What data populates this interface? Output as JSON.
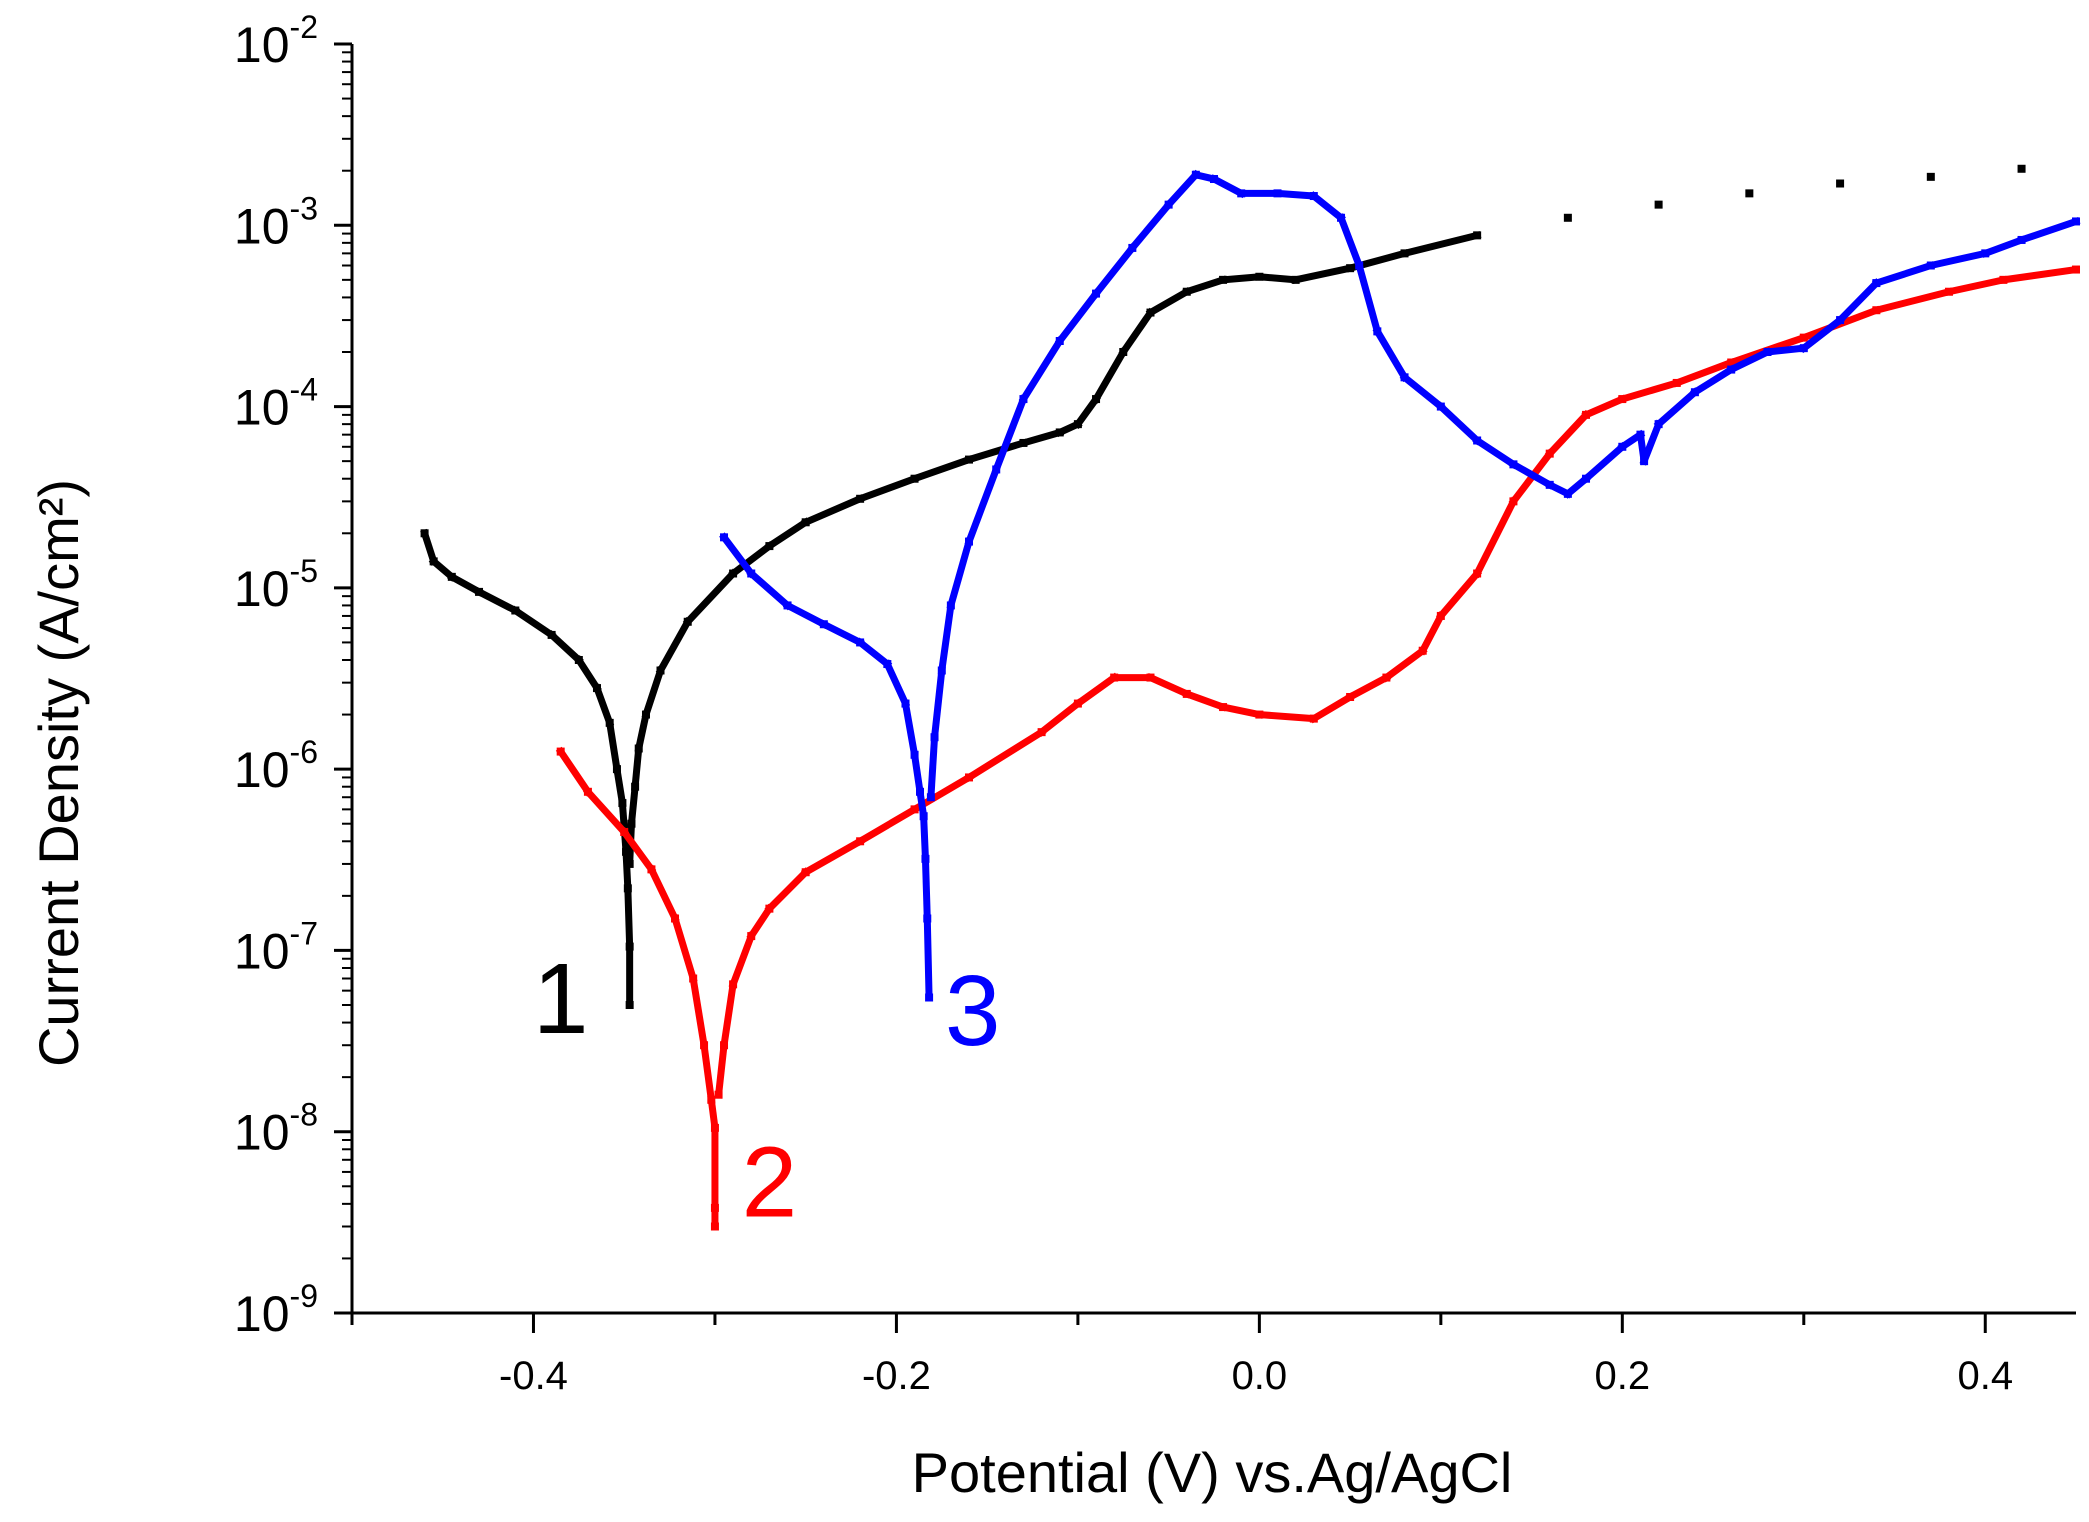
{
  "chart_data": {
    "type": "scatter",
    "x_scale": "linear",
    "y_scale": "log",
    "xlabel": "Potential (V) vs.Ag/AgCl",
    "ylabel": "Current Density (A/cm²)",
    "xlim": [
      -0.5,
      0.45
    ],
    "ylim": [
      1e-09,
      0.01
    ],
    "x_ticks": [
      {
        "value": -0.4,
        "label": "-0.4"
      },
      {
        "value": -0.2,
        "label": "-0.2"
      },
      {
        "value": 0.0,
        "label": "0.0"
      },
      {
        "value": 0.2,
        "label": "0.2"
      },
      {
        "value": 0.4,
        "label": "0.4"
      }
    ],
    "y_ticks": [
      {
        "value": 0.01,
        "base": "10",
        "exp": "-2"
      },
      {
        "value": 0.001,
        "base": "10",
        "exp": "-3"
      },
      {
        "value": 0.0001,
        "base": "10",
        "exp": "-4"
      },
      {
        "value": 1e-05,
        "base": "10",
        "exp": "-5"
      },
      {
        "value": 1e-06,
        "base": "10",
        "exp": "-6"
      },
      {
        "value": 1e-07,
        "base": "10",
        "exp": "-7"
      },
      {
        "value": 1e-08,
        "base": "10",
        "exp": "-8"
      },
      {
        "value": 1e-09,
        "base": "10",
        "exp": "-9"
      }
    ],
    "grid": false,
    "legend": "none",
    "series": [
      {
        "label": "1",
        "color": "#000000",
        "label_pos": [
          -0.385,
          3.5e-08
        ],
        "points": [
          [
            -0.46,
            2e-05
          ],
          [
            -0.455,
            1.4e-05
          ],
          [
            -0.445,
            1.15e-05
          ],
          [
            -0.43,
            9.5e-06
          ],
          [
            -0.41,
            7.5e-06
          ],
          [
            -0.39,
            5.5e-06
          ],
          [
            -0.375,
            4e-06
          ],
          [
            -0.365,
            2.8e-06
          ],
          [
            -0.358,
            1.8e-06
          ],
          [
            -0.354,
            1e-06
          ],
          [
            -0.351,
            6.5e-07
          ],
          [
            -0.349,
            3.5e-07
          ],
          [
            -0.348,
            2.2e-07
          ],
          [
            -0.347,
            1.05e-07
          ],
          [
            -0.347,
            5e-08
          ],
          [
            -0.347,
            3e-07
          ],
          [
            -0.346,
            5e-07
          ],
          [
            -0.344,
            8e-07
          ],
          [
            -0.342,
            1.3e-06
          ],
          [
            -0.338,
            2e-06
          ],
          [
            -0.33,
            3.5e-06
          ],
          [
            -0.315,
            6.5e-06
          ],
          [
            -0.29,
            1.2e-05
          ],
          [
            -0.27,
            1.7e-05
          ],
          [
            -0.25,
            2.3e-05
          ],
          [
            -0.22,
            3.1e-05
          ],
          [
            -0.19,
            4e-05
          ],
          [
            -0.16,
            5.1e-05
          ],
          [
            -0.13,
            6.3e-05
          ],
          [
            -0.11,
            7.2e-05
          ],
          [
            -0.1,
            8e-05
          ],
          [
            -0.09,
            0.00011
          ],
          [
            -0.075,
            0.0002
          ],
          [
            -0.06,
            0.00033
          ],
          [
            -0.04,
            0.00043
          ],
          [
            -0.02,
            0.0005
          ],
          [
            0.0,
            0.00052
          ],
          [
            0.02,
            0.0005
          ],
          [
            0.05,
            0.00058
          ],
          [
            0.08,
            0.0007
          ],
          [
            0.12,
            0.00088
          ],
          [
            0.17,
            0.0011
          ],
          [
            0.22,
            0.0013
          ],
          [
            0.27,
            0.0015
          ],
          [
            0.32,
            0.0017
          ],
          [
            0.37,
            0.00185
          ],
          [
            0.42,
            0.00205
          ]
        ]
      },
      {
        "label": "2",
        "color": "#ff0000",
        "label_pos": [
          -0.27,
          3.4e-09
        ],
        "points": [
          [
            -0.385,
            1.25e-06
          ],
          [
            -0.37,
            7.5e-07
          ],
          [
            -0.35,
            4.5e-07
          ],
          [
            -0.335,
            2.8e-07
          ],
          [
            -0.322,
            1.5e-07
          ],
          [
            -0.312,
            7e-08
          ],
          [
            -0.306,
            3e-08
          ],
          [
            -0.302,
            1.5e-08
          ],
          [
            -0.3,
            1.05e-08
          ],
          [
            -0.3,
            3.8e-09
          ],
          [
            -0.3,
            3e-09
          ],
          [
            -0.298,
            1.6e-08
          ],
          [
            -0.295,
            3e-08
          ],
          [
            -0.29,
            6.5e-08
          ],
          [
            -0.28,
            1.2e-07
          ],
          [
            -0.27,
            1.7e-07
          ],
          [
            -0.25,
            2.7e-07
          ],
          [
            -0.22,
            4e-07
          ],
          [
            -0.19,
            6e-07
          ],
          [
            -0.16,
            9e-07
          ],
          [
            -0.12,
            1.6e-06
          ],
          [
            -0.1,
            2.3e-06
          ],
          [
            -0.08,
            3.2e-06
          ],
          [
            -0.06,
            3.2e-06
          ],
          [
            -0.04,
            2.6e-06
          ],
          [
            -0.02,
            2.2e-06
          ],
          [
            0.0,
            2e-06
          ],
          [
            0.03,
            1.9e-06
          ],
          [
            0.05,
            2.5e-06
          ],
          [
            0.07,
            3.2e-06
          ],
          [
            0.09,
            4.5e-06
          ],
          [
            0.1,
            7e-06
          ],
          [
            0.12,
            1.2e-05
          ],
          [
            0.14,
            3e-05
          ],
          [
            0.16,
            5.5e-05
          ],
          [
            0.18,
            9e-05
          ],
          [
            0.2,
            0.00011
          ],
          [
            0.23,
            0.000135
          ],
          [
            0.26,
            0.000175
          ],
          [
            0.3,
            0.00024
          ],
          [
            0.34,
            0.00034
          ],
          [
            0.38,
            0.00043
          ],
          [
            0.41,
            0.0005
          ],
          [
            0.45,
            0.00057
          ]
        ]
      },
      {
        "label": "3",
        "color": "#0000ff",
        "label_pos": [
          -0.158,
          3e-08
        ],
        "points": [
          [
            -0.295,
            1.9e-05
          ],
          [
            -0.28,
            1.2e-05
          ],
          [
            -0.26,
            8e-06
          ],
          [
            -0.24,
            6.3e-06
          ],
          [
            -0.22,
            5e-06
          ],
          [
            -0.205,
            3.8e-06
          ],
          [
            -0.195,
            2.3e-06
          ],
          [
            -0.19,
            1.2e-06
          ],
          [
            -0.187,
            7.5e-07
          ],
          [
            -0.185,
            5.5e-07
          ],
          [
            -0.184,
            3.2e-07
          ],
          [
            -0.183,
            1.5e-07
          ],
          [
            -0.182,
            5.5e-08
          ],
          [
            -0.181,
            7e-07
          ],
          [
            -0.179,
            1.5e-06
          ],
          [
            -0.175,
            3.5e-06
          ],
          [
            -0.17,
            8e-06
          ],
          [
            -0.16,
            1.8e-05
          ],
          [
            -0.145,
            4.5e-05
          ],
          [
            -0.13,
            0.00011
          ],
          [
            -0.11,
            0.00023
          ],
          [
            -0.09,
            0.00042
          ],
          [
            -0.07,
            0.00075
          ],
          [
            -0.05,
            0.0013
          ],
          [
            -0.035,
            0.0019
          ],
          [
            -0.025,
            0.0018
          ],
          [
            -0.01,
            0.0015
          ],
          [
            0.01,
            0.0015
          ],
          [
            0.03,
            0.00145
          ],
          [
            0.045,
            0.0011
          ],
          [
            0.055,
            0.0006
          ],
          [
            0.065,
            0.00026
          ],
          [
            0.08,
            0.000145
          ],
          [
            0.1,
            0.0001
          ],
          [
            0.12,
            6.5e-05
          ],
          [
            0.14,
            4.8e-05
          ],
          [
            0.16,
            3.7e-05
          ],
          [
            0.17,
            3.3e-05
          ],
          [
            0.18,
            4e-05
          ],
          [
            0.2,
            6e-05
          ],
          [
            0.21,
            7e-05
          ],
          [
            0.212,
            5e-05
          ],
          [
            0.22,
            8e-05
          ],
          [
            0.24,
            0.00012
          ],
          [
            0.26,
            0.00016
          ],
          [
            0.28,
            0.0002
          ],
          [
            0.3,
            0.00021
          ],
          [
            0.32,
            0.0003
          ],
          [
            0.34,
            0.00048
          ],
          [
            0.37,
            0.0006
          ],
          [
            0.4,
            0.0007
          ],
          [
            0.42,
            0.00083
          ],
          [
            0.45,
            0.00105
          ]
        ]
      }
    ]
  }
}
